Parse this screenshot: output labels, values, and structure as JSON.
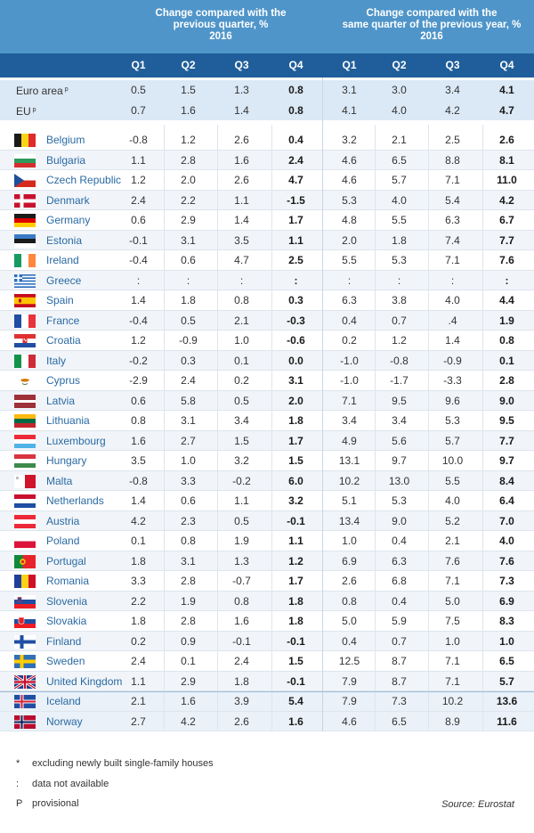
{
  "headers": {
    "group1": "Change compared with the\nprevious quarter, %\n2016",
    "group2": "Change compared with the\nsame quarter of the previous year, %\n2016",
    "quarters": [
      "Q1",
      "Q2",
      "Q3",
      "Q4",
      "Q1",
      "Q2",
      "Q3",
      "Q4"
    ]
  },
  "rows": [
    {
      "country": "Euro area",
      "sup": "p",
      "flag": "",
      "kind": "agg",
      "values": [
        "0.5",
        "1.5",
        "1.3",
        "0.8",
        "3.1",
        "3.0",
        "3.4",
        "4.1"
      ]
    },
    {
      "country": "EU",
      "sup": "p",
      "flag": "",
      "kind": "agg",
      "values": [
        "0.7",
        "1.6",
        "1.4",
        "0.8",
        "4.1",
        "4.0",
        "4.2",
        "4.7"
      ]
    },
    {
      "country": "Belgium",
      "flag": "be-flag-icon",
      "values": [
        "-0.8",
        "1.2",
        "2.6",
        "0.4",
        "3.2",
        "2.1",
        "2.5",
        "2.6"
      ]
    },
    {
      "country": "Bulgaria",
      "flag": "bg-flag-icon",
      "values": [
        "1.1",
        "2.8",
        "1.6",
        "2.4",
        "4.6",
        "6.5",
        "8.8",
        "8.1"
      ]
    },
    {
      "country": "Czech Republic",
      "flag": "cz-flag-icon",
      "values": [
        "1.2",
        "2.0",
        "2.6",
        "4.7",
        "4.6",
        "5.7",
        "7.1",
        "11.0"
      ]
    },
    {
      "country": "Denmark",
      "flag": "dk-flag-icon",
      "values": [
        "2.4",
        "2.2",
        "1.1",
        "-1.5",
        "5.3",
        "4.0",
        "5.4",
        "4.2"
      ]
    },
    {
      "country": "Germany",
      "flag": "de-flag-icon",
      "values": [
        "0.6",
        "2.9",
        "1.4",
        "1.7",
        "4.8",
        "5.5",
        "6.3",
        "6.7"
      ]
    },
    {
      "country": "Estonia",
      "flag": "ee-flag-icon",
      "values": [
        "-0.1",
        "3.1",
        "3.5",
        "1.1",
        "2.0",
        "1.8",
        "7.4",
        "7.7"
      ]
    },
    {
      "country": "Ireland",
      "flag": "ie-flag-icon",
      "values": [
        "-0.4",
        "0.6",
        "4.7",
        "2.5",
        "5.5",
        "5.3",
        "7.1",
        "7.6"
      ]
    },
    {
      "country": "Greece",
      "flag": "gr-flag-icon",
      "values": [
        ":",
        ":",
        ":",
        ":",
        ":",
        ":",
        ":",
        ":"
      ]
    },
    {
      "country": "Spain",
      "flag": "es-flag-icon",
      "values": [
        "1.4",
        "1.8",
        "0.8",
        "0.3",
        "6.3",
        "3.8",
        "4.0",
        "4.4"
      ]
    },
    {
      "country": "France",
      "flag": "fr-flag-icon",
      "values": [
        "-0.4",
        "0.5",
        "2.1",
        "-0.3",
        "0.4",
        "0.7",
        ".4",
        "1.9"
      ]
    },
    {
      "country": "Croatia",
      "flag": "hr-flag-icon",
      "values": [
        "1.2",
        "-0.9",
        "1.0",
        "-0.6",
        "0.2",
        "1.2",
        "1.4",
        "0.8"
      ]
    },
    {
      "country": "Italy",
      "flag": "it-flag-icon",
      "values": [
        "-0.2",
        "0.3",
        "0.1",
        "0.0",
        "-1.0",
        "-0.8",
        "-0.9",
        "0.1"
      ]
    },
    {
      "country": "Cyprus",
      "flag": "cy-flag-icon",
      "values": [
        "-2.9",
        "2.4",
        "0.2",
        "3.1",
        "-1.0",
        "-1.7",
        "-3.3",
        "2.8"
      ]
    },
    {
      "country": "Latvia",
      "flag": "lv-flag-icon",
      "values": [
        "0.6",
        "5.8",
        "0.5",
        "2.0",
        "7.1",
        "9.5",
        "9.6",
        "9.0"
      ]
    },
    {
      "country": "Lithuania",
      "flag": "lt-flag-icon",
      "values": [
        "0.8",
        "3.1",
        "3.4",
        "1.8",
        "3.4",
        "3.4",
        "5.3",
        "9.5"
      ]
    },
    {
      "country": "Luxembourg",
      "flag": "lu-flag-icon",
      "values": [
        "1.6",
        "2.7",
        "1.5",
        "1.7",
        "4.9",
        "5.6",
        "5.7",
        "7.7"
      ]
    },
    {
      "country": "Hungary",
      "flag": "hu-flag-icon",
      "values": [
        "3.5",
        "1.0",
        "3.2",
        "1.5",
        "13.1",
        "9.7",
        "10.0",
        "9.7"
      ]
    },
    {
      "country": "Malta",
      "flag": "mt-flag-icon",
      "values": [
        "-0.8",
        "3.3",
        "-0.2",
        "6.0",
        "10.2",
        "13.0",
        "5.5",
        "8.4"
      ]
    },
    {
      "country": "Netherlands",
      "flag": "nl-flag-icon",
      "values": [
        "1.4",
        "0.6",
        "1.1",
        "3.2",
        "5.1",
        "5.3",
        "4.0",
        "6.4"
      ]
    },
    {
      "country": "Austria",
      "flag": "at-flag-icon",
      "values": [
        "4.2",
        "2.3",
        "0.5",
        "-0.1",
        "13.4",
        "9.0",
        "5.2",
        "7.0"
      ]
    },
    {
      "country": "Poland",
      "flag": "pl-flag-icon",
      "values": [
        "0.1",
        "0.8",
        "1.9",
        "1.1",
        "1.0",
        "0.4",
        "2.1",
        "4.0"
      ]
    },
    {
      "country": "Portugal",
      "flag": "pt-flag-icon",
      "values": [
        "1.8",
        "3.1",
        "1.3",
        "1.2",
        "6.9",
        "6.3",
        "7.6",
        "7.6"
      ]
    },
    {
      "country": "Romania",
      "flag": "ro-flag-icon",
      "values": [
        "3.3",
        "2.8",
        "-0.7",
        "1.7",
        "2.6",
        "6.8",
        "7.1",
        "7.3"
      ]
    },
    {
      "country": "Slovenia",
      "flag": "si-flag-icon",
      "values": [
        "2.2",
        "1.9",
        "0.8",
        "1.8",
        "0.8",
        "0.4",
        "5.0",
        "6.9"
      ]
    },
    {
      "country": "Slovakia",
      "flag": "sk-flag-icon",
      "values": [
        "1.8",
        "2.8",
        "1.6",
        "1.8",
        "5.0",
        "5.9",
        "7.5",
        "8.3"
      ]
    },
    {
      "country": "Finland",
      "flag": "fi-flag-icon",
      "values": [
        "0.2",
        "0.9",
        "-0.1",
        "-0.1",
        "0.4",
        "0.7",
        "1.0",
        "1.0"
      ]
    },
    {
      "country": "Sweden",
      "flag": "se-flag-icon",
      "values": [
        "2.4",
        "0.1",
        "2.4",
        "1.5",
        "12.5",
        "8.7",
        "7.1",
        "6.5"
      ]
    },
    {
      "country": "United Kingdom",
      "flag": "uk-flag-icon",
      "values": [
        "1.1",
        "2.9",
        "1.8",
        "-0.1",
        "7.9",
        "8.7",
        "7.1",
        "5.7"
      ]
    },
    {
      "country": "Iceland",
      "flag": "is-flag-icon",
      "kind": "eea",
      "values": [
        "2.1",
        "1.6",
        "3.9",
        "5.4",
        "7.9",
        "7.3",
        "10.2",
        "13.6"
      ]
    },
    {
      "country": "Norway",
      "flag": "no-flag-icon",
      "kind": "eea",
      "values": [
        "2.7",
        "4.2",
        "2.6",
        "1.6",
        "4.6",
        "6.5",
        "8.9",
        "11.6"
      ]
    }
  ],
  "notes": [
    {
      "symbol": "*",
      "text": "excluding newly built single-family houses"
    },
    {
      "symbol": ":",
      "text": "data not available"
    },
    {
      "symbol": "P",
      "text": "provisional"
    }
  ],
  "source": "Source: Eurostat",
  "colors": {
    "header": "#4f95c9",
    "subheader": "#1f5e9a",
    "aggregate_band": "#dbe8f5",
    "country_text": "#2a6aa3"
  }
}
